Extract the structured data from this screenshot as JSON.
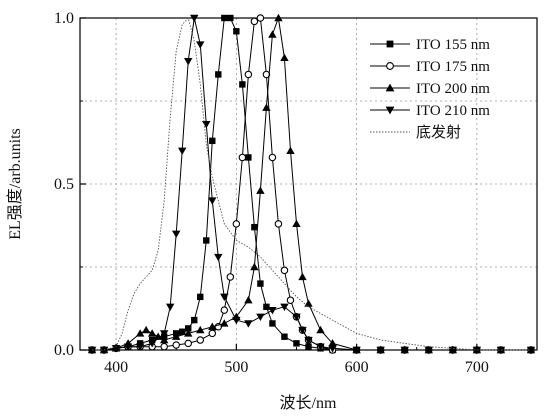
{
  "chart_data": {
    "type": "line",
    "xlabel": "波长/nm",
    "ylabel": "EL强度/arb.units",
    "xlim": [
      370,
      750
    ],
    "ylim": [
      0,
      1.0
    ],
    "x_ticks": [
      "400",
      "500",
      "600",
      "700"
    ],
    "y_ticks": [
      "0.0",
      "0.5",
      "1.0"
    ],
    "grid": "dashed",
    "legend_position": "top-right",
    "series": [
      {
        "name": "ITO 155 nm",
        "marker": "square",
        "x": [
          380,
          390,
          400,
          410,
          420,
          430,
          440,
          450,
          455,
          460,
          465,
          470,
          475,
          480,
          485,
          490,
          495,
          500,
          505,
          510,
          515,
          520,
          525,
          530,
          540,
          550,
          560,
          570,
          580,
          600,
          620,
          640,
          660,
          680,
          700,
          720,
          745
        ],
        "y": [
          0.0,
          0.0,
          0.005,
          0.01,
          0.02,
          0.03,
          0.04,
          0.05,
          0.055,
          0.065,
          0.09,
          0.16,
          0.33,
          0.63,
          0.83,
          1.0,
          1.0,
          0.96,
          0.8,
          0.58,
          0.37,
          0.2,
          0.13,
          0.08,
          0.04,
          0.02,
          0.01,
          0.005,
          0.0,
          0.0,
          0.0,
          0.0,
          0.0,
          0.0,
          0.0,
          0.0,
          0.0
        ]
      },
      {
        "name": "ITO 175 nm",
        "marker": "circle",
        "x": [
          380,
          390,
          400,
          410,
          420,
          430,
          440,
          450,
          460,
          470,
          480,
          485,
          490,
          495,
          500,
          505,
          510,
          515,
          520,
          525,
          530,
          535,
          540,
          545,
          550,
          555,
          560,
          570,
          580,
          600,
          620,
          640,
          660,
          680,
          700,
          720,
          745
        ],
        "y": [
          0.0,
          0.0,
          0.005,
          0.01,
          0.01,
          0.01,
          0.01,
          0.015,
          0.02,
          0.03,
          0.05,
          0.07,
          0.12,
          0.22,
          0.38,
          0.58,
          0.83,
          0.99,
          1.0,
          0.83,
          0.58,
          0.38,
          0.24,
          0.15,
          0.1,
          0.06,
          0.03,
          0.01,
          0.0,
          0.0,
          0.0,
          0.0,
          0.0,
          0.0,
          0.0,
          0.0,
          0.0
        ]
      },
      {
        "name": "ITO 200 nm",
        "marker": "triangle-up",
        "x": [
          380,
          390,
          400,
          410,
          420,
          425,
          430,
          435,
          440,
          450,
          460,
          470,
          480,
          490,
          500,
          510,
          515,
          520,
          525,
          530,
          535,
          540,
          545,
          550,
          555,
          560,
          570,
          580,
          600,
          620,
          640,
          660,
          680,
          700,
          720,
          745
        ],
        "y": [
          0.0,
          0.0,
          0.005,
          0.02,
          0.05,
          0.06,
          0.05,
          0.04,
          0.03,
          0.04,
          0.05,
          0.06,
          0.07,
          0.08,
          0.1,
          0.15,
          0.25,
          0.48,
          0.73,
          0.95,
          1.0,
          0.88,
          0.6,
          0.38,
          0.22,
          0.14,
          0.06,
          0.02,
          0.0,
          0.0,
          0.0,
          0.0,
          0.0,
          0.0,
          0.0,
          0.0
        ]
      },
      {
        "name": "ITO 210 nm",
        "marker": "triangle-down",
        "x": [
          380,
          390,
          400,
          410,
          420,
          430,
          440,
          445,
          450,
          455,
          460,
          465,
          470,
          475,
          480,
          485,
          490,
          500,
          510,
          520,
          530,
          540,
          550,
          555,
          560,
          570,
          580,
          600,
          620,
          640,
          660,
          680,
          700,
          720,
          745
        ],
        "y": [
          0.0,
          0.0,
          0.005,
          0.01,
          0.01,
          0.02,
          0.05,
          0.13,
          0.35,
          0.6,
          0.87,
          1.0,
          0.92,
          0.68,
          0.45,
          0.28,
          0.16,
          0.09,
          0.08,
          0.1,
          0.12,
          0.13,
          0.1,
          0.06,
          0.03,
          0.01,
          0.005,
          0.0,
          0.0,
          0.0,
          0.0,
          0.0,
          0.0,
          0.0,
          0.0
        ]
      },
      {
        "name": "底发射",
        "marker": "none",
        "x": [
          380,
          390,
          400,
          405,
          410,
          415,
          420,
          425,
          430,
          435,
          440,
          445,
          450,
          455,
          460,
          465,
          470,
          475,
          480,
          490,
          500,
          510,
          520,
          530,
          540,
          550,
          560,
          570,
          580,
          590,
          600,
          610,
          620,
          640,
          660,
          680,
          700,
          720,
          745
        ],
        "y": [
          0.0,
          0.0,
          0.01,
          0.05,
          0.12,
          0.17,
          0.2,
          0.22,
          0.24,
          0.3,
          0.45,
          0.7,
          0.9,
          0.98,
          1.0,
          0.93,
          0.8,
          0.62,
          0.52,
          0.38,
          0.33,
          0.31,
          0.28,
          0.24,
          0.2,
          0.16,
          0.13,
          0.11,
          0.09,
          0.07,
          0.05,
          0.04,
          0.03,
          0.02,
          0.01,
          0.005,
          0.0,
          0.0,
          0.0
        ]
      }
    ]
  }
}
